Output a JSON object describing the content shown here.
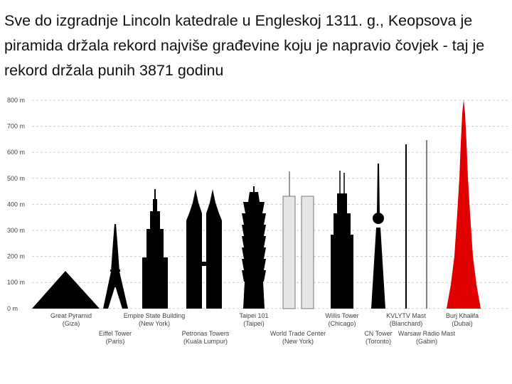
{
  "heading": "Sve do izgradnje Lincoln katedrale u Engleskoj 1311. g., Keopsova je piramida držala rekord najviše građevine koju je napravio čovjek - taj je rekord držala punih 3871 godinu",
  "axis_labels": [
    "800 m",
    "700 m",
    "600 m",
    "500 m",
    "400 m",
    "300 m",
    "200 m",
    "100 m",
    "0 m"
  ],
  "buildings": [
    {
      "name": "Great Pyramid",
      "location": "(Giza)"
    },
    {
      "name": "Eiffel Tower",
      "location": "(Paris)"
    },
    {
      "name": "Empire State Building",
      "location": "(New York)"
    },
    {
      "name": "Petronas Towers",
      "location": "(Kuala Lumpur)"
    },
    {
      "name": "Taipei 101",
      "location": "(Taipei)"
    },
    {
      "name": "World Trade Center",
      "location": "(New York)"
    },
    {
      "name": "Willis Tower",
      "location": "(Chicago)"
    },
    {
      "name": "CN Tower",
      "location": "(Toronto)"
    },
    {
      "name": "KVLYTV Mast",
      "location": "(Blanchard)"
    },
    {
      "name": "Warsaw Radio Mast",
      "location": "(Gabin)"
    },
    {
      "name": "Burj Khalifa",
      "location": "(Dubai)"
    }
  ]
}
